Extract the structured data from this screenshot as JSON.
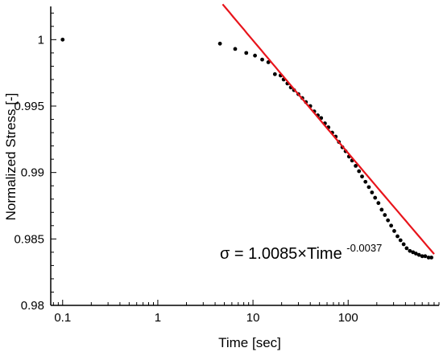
{
  "chart_data": {
    "type": "scatter",
    "xlabel": "Time [sec]",
    "ylabel": "Normalized Stress [-]",
    "x_scale": "log",
    "xlim": [
      0.075,
      900
    ],
    "ylim": [
      0.98,
      1.0025
    ],
    "x_ticks": [
      {
        "value": 0.1,
        "label": "0.1"
      },
      {
        "value": 1,
        "label": "1"
      },
      {
        "value": 10,
        "label": "10"
      },
      {
        "value": 100,
        "label": "100"
      }
    ],
    "y_ticks": [
      {
        "value": 0.98,
        "label": "0.98"
      },
      {
        "value": 0.985,
        "label": "0.985"
      },
      {
        "value": 0.99,
        "label": "0.99"
      },
      {
        "value": 0.995,
        "label": "0.995"
      },
      {
        "value": 1.0,
        "label": "1"
      }
    ],
    "grid": false,
    "colors": {
      "data": "#000000",
      "fit": "#e8141b",
      "axes": "#000000"
    },
    "series": [
      {
        "marker": "dot",
        "points": [
          [
            0.1,
            1.0
          ],
          [
            4.5,
            0.9997
          ],
          [
            6.5,
            0.9993
          ],
          [
            8.5,
            0.999
          ],
          [
            10.5,
            0.9988
          ],
          [
            12.5,
            0.9985
          ],
          [
            14.5,
            0.9983
          ],
          [
            17,
            0.9974
          ],
          [
            19.5,
            0.9973
          ],
          [
            21,
            0.997
          ],
          [
            23,
            0.9967
          ],
          [
            25,
            0.9964
          ],
          [
            27,
            0.9962
          ],
          [
            30,
            0.9959
          ],
          [
            33,
            0.9956
          ],
          [
            36,
            0.9953
          ],
          [
            40,
            0.995
          ],
          [
            44,
            0.9946
          ],
          [
            48,
            0.9943
          ],
          [
            52,
            0.9941
          ],
          [
            57,
            0.9937
          ],
          [
            62,
            0.9934
          ],
          [
            68,
            0.993
          ],
          [
            74,
            0.9927
          ],
          [
            80,
            0.9923
          ],
          [
            87,
            0.9919
          ],
          [
            94,
            0.9916
          ],
          [
            102,
            0.9912
          ],
          [
            110,
            0.9909
          ],
          [
            120,
            0.9905
          ],
          [
            130,
            0.9901
          ],
          [
            140,
            0.9897
          ],
          [
            152,
            0.9893
          ],
          [
            165,
            0.9889
          ],
          [
            178,
            0.9885
          ],
          [
            192,
            0.9881
          ],
          [
            208,
            0.9877
          ],
          [
            225,
            0.9872
          ],
          [
            243,
            0.9868
          ],
          [
            262,
            0.9864
          ],
          [
            283,
            0.986
          ],
          [
            305,
            0.9856
          ],
          [
            330,
            0.9852
          ],
          [
            355,
            0.9849
          ],
          [
            383,
            0.9846
          ],
          [
            412,
            0.9843
          ],
          [
            445,
            0.9841
          ],
          [
            480,
            0.984
          ],
          [
            515,
            0.9839
          ],
          [
            555,
            0.9838
          ],
          [
            600,
            0.9837
          ],
          [
            645,
            0.9837
          ],
          [
            700,
            0.9836
          ],
          [
            750,
            0.9836
          ]
        ]
      },
      {
        "type": "line",
        "equation": "σ = 1.0085×Time^(-0.0037)",
        "coefficient": 1.0085,
        "exponent": -0.0037,
        "x_range": [
          4.8,
          800
        ]
      }
    ],
    "annotation": {
      "base": "σ = 1.0085×Time",
      "superscript": "-0.0037"
    }
  }
}
